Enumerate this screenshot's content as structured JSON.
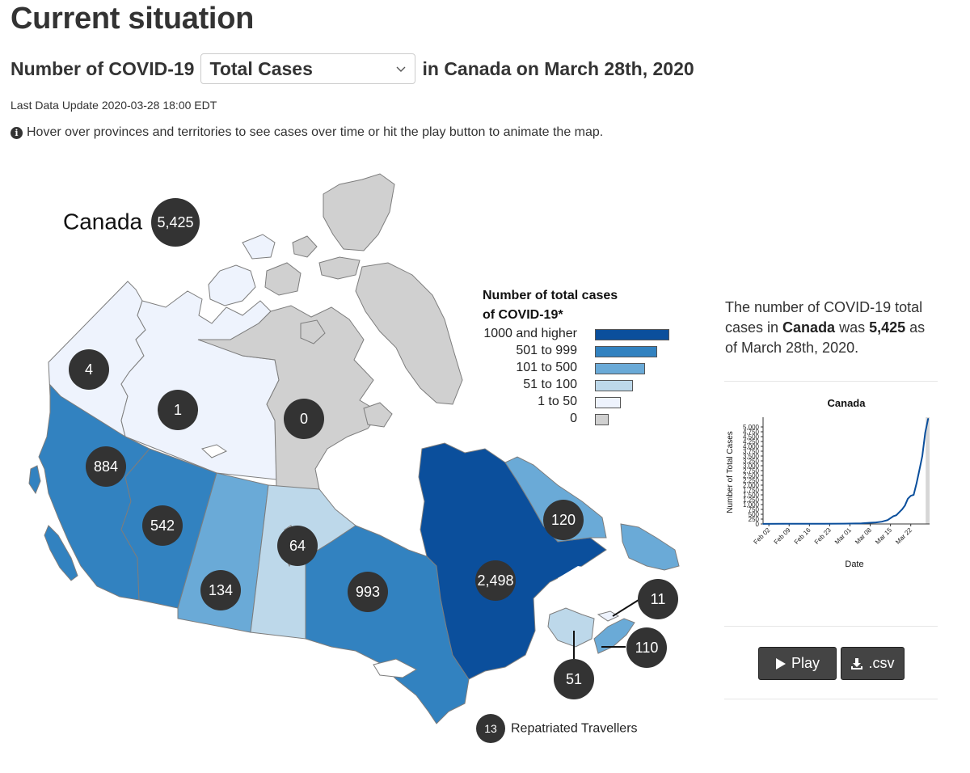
{
  "page": {
    "title": "Current situation",
    "subtitle_prefix": "Number of COVID-19",
    "subtitle_suffix": "in Canada on March 28th, 2020",
    "measure_select": {
      "selected": "Total Cases"
    },
    "last_update": "Last Data Update 2020-03-28 18:00 EDT",
    "info_text": "Hover over provinces and territories to see cases over time or hit the play button to animate the map."
  },
  "map": {
    "canada_label": "Canada",
    "canada_total": "5,425",
    "regions": {
      "yt": "4",
      "nt": "1",
      "nu": "0",
      "bc": "884",
      "ab": "542",
      "sk": "134",
      "mb": "64",
      "on": "993",
      "qc": "2,498",
      "nl": "120",
      "pe": "11",
      "ns": "110",
      "nb": "51"
    },
    "repatriated": {
      "count": "13",
      "label": "Repatriated Travellers"
    },
    "colors": {
      "c1000": "#0b4f9c",
      "c501": "#3282c0",
      "c101": "#6aaad7",
      "c51": "#bdd8ea",
      "c1": "#eef3fd",
      "c0": "#d0d0d0"
    }
  },
  "legend": {
    "title_line1": "Number of total cases",
    "title_line2": "of COVID-19*",
    "items": [
      {
        "label": "1000 and higher",
        "color": "#0b4f9c"
      },
      {
        "label": "501 to 999",
        "color": "#3282c0"
      },
      {
        "label": "101 to 500",
        "color": "#6aaad7"
      },
      {
        "label": "51 to 100",
        "color": "#bdd8ea"
      },
      {
        "label": "1 to 50",
        "color": "#eef3fd"
      },
      {
        "label": "0",
        "color": "#d0d0d0"
      }
    ]
  },
  "summary": {
    "part1": "The number of COVID-19 total cases in ",
    "region": "Canada",
    "part2": " was ",
    "value": "5,425",
    "part3": " as of March 28th, 2020."
  },
  "chart_data": {
    "type": "line",
    "title": "Canada",
    "xlabel": "Date",
    "ylabel": "Number of Total Cases",
    "x_ticks": [
      "Feb 02",
      "Feb 09",
      "Feb 16",
      "Feb 23",
      "Mar 01",
      "Mar 08",
      "Mar 15",
      "Mar 22"
    ],
    "y_ticks": [
      "0",
      "250",
      "500",
      "750",
      "1,000",
      "1,250",
      "1,500",
      "1,750",
      "2,000",
      "2,250",
      "2,500",
      "2,750",
      "3,000",
      "3,250",
      "3,500",
      "3,750",
      "4,000",
      "4,250",
      "4,500",
      "4,750",
      "5,000"
    ],
    "ylim": [
      0,
      5500
    ],
    "x": [
      "2020-01-31",
      "2020-02-07",
      "2020-02-14",
      "2020-02-21",
      "2020-02-28",
      "2020-03-05",
      "2020-03-08",
      "2020-03-10",
      "2020-03-12",
      "2020-03-14",
      "2020-03-16",
      "2020-03-17",
      "2020-03-18",
      "2020-03-19",
      "2020-03-20",
      "2020-03-21",
      "2020-03-22",
      "2020-03-23",
      "2020-03-24",
      "2020-03-25",
      "2020-03-26",
      "2020-03-27",
      "2020-03-28"
    ],
    "values": [
      4,
      7,
      8,
      9,
      15,
      33,
      64,
      80,
      117,
      200,
      400,
      450,
      600,
      750,
      950,
      1300,
      1450,
      1500,
      2100,
      2800,
      3500,
      4700,
      5425
    ],
    "highlight": "2020-03-28",
    "series_color": "#0b4f9c"
  },
  "buttons": {
    "play": "Play",
    "download": ".csv"
  }
}
